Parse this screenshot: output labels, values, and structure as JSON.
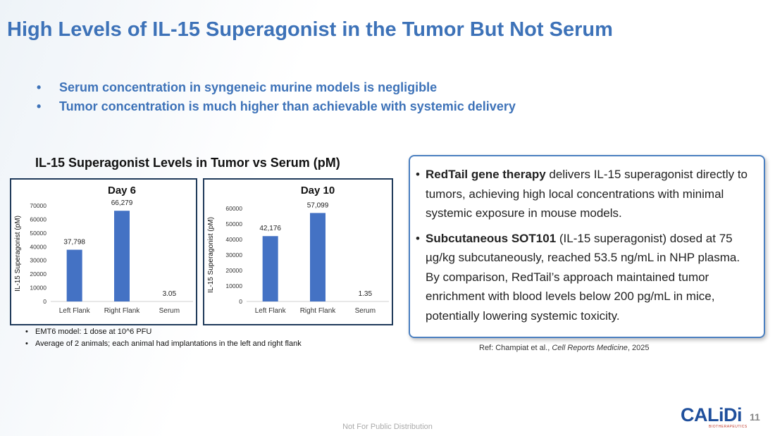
{
  "title": "High Levels of IL-15 Superagonist in the Tumor But Not Serum",
  "bullets": [
    "Serum concentration in syngeneic murine models is negligible",
    "Tumor concentration is much higher than achievable with systemic delivery"
  ],
  "charts_heading": "IL-15 Superagonist Levels in Tumor vs Serum (pM)",
  "chart_data": [
    {
      "type": "bar",
      "title": "Day 6",
      "y_label": "IL-15 Superagonist (pM)",
      "categories": [
        "Left Flank",
        "Right Flank",
        "Serum"
      ],
      "values": [
        37798,
        66279,
        3.05
      ],
      "value_labels": [
        "37,798",
        "66,279",
        "3.05"
      ],
      "color": "#4472c4",
      "ylim": [
        0,
        70000
      ],
      "yticks": [
        0,
        10000,
        20000,
        30000,
        40000,
        50000,
        60000,
        70000
      ],
      "grid": false
    },
    {
      "type": "bar",
      "title": "Day 10",
      "y_label": "IL-15 Superagonist (pM)",
      "categories": [
        "Left Flank",
        "Right Flank",
        "Serum"
      ],
      "values": [
        42176,
        57099,
        1.35
      ],
      "value_labels": [
        "42,176",
        "57,099",
        "1.35"
      ],
      "color": "#4472c4",
      "ylim": [
        0,
        60000
      ],
      "yticks": [
        0,
        10000,
        20000,
        30000,
        40000,
        50000,
        60000
      ],
      "grid": false
    }
  ],
  "notes": [
    "EMT6 model: 1 dose at 10^6 PFU",
    "Average of 2 animals; each animal had implantations in the left and right flank"
  ],
  "callout": [
    {
      "bold": "RedTail gene therapy",
      "text": " delivers IL-15 superagonist directly to tumors, achieving high local concentrations with minimal systemic exposure in mouse models."
    },
    {
      "bold": "Subcutaneous SOT101",
      "text": " (IL-15 superagonist) dosed at 75 µg/kg subcutaneously, reached 53.5 ng/mL in NHP plasma. By comparison, RedTail’s approach maintained tumor enrichment with blood levels below 200 pg/mL in mice, potentially lowering systemic toxicity."
    }
  ],
  "ref": {
    "prefix": "Ref: Champiat et al., ",
    "journal": "Cell Reports Medicine",
    "suffix": ", 2025"
  },
  "footer": "Not For Public Distribution",
  "logo": {
    "name": "CALiDi",
    "tagline": "BIOTHERAPEUTICS"
  },
  "page_number": "11"
}
